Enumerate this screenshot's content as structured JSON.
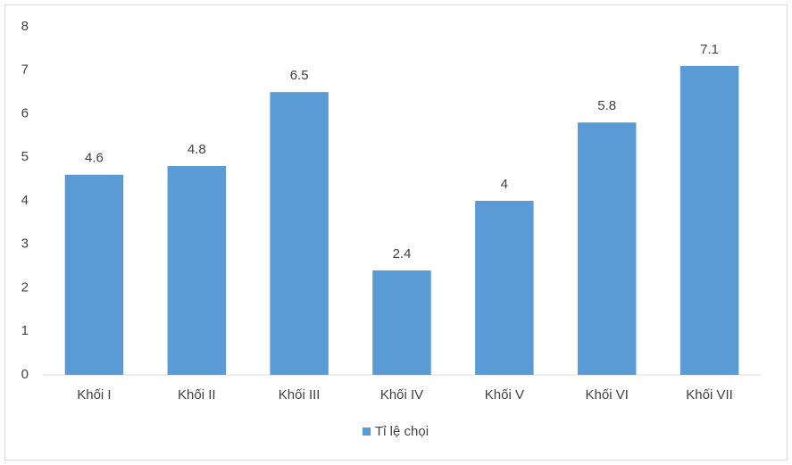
{
  "chart_data": {
    "type": "bar",
    "categories": [
      "Khối I",
      "Khối II",
      "Khối III",
      "Khối IV",
      "Khối V",
      "Khối VI",
      "Khối VII"
    ],
    "series": [
      {
        "name": "Tỉ lệ chọi",
        "color": "#5b9bd5",
        "values": [
          4.6,
          4.8,
          6.5,
          2.4,
          4,
          5.8,
          7.1
        ]
      }
    ],
    "ylim": [
      0,
      8
    ],
    "yticks": [
      0,
      1,
      2,
      3,
      4,
      5,
      6,
      7,
      8
    ],
    "grid": false,
    "legend": "bottom",
    "data_labels": true
  }
}
